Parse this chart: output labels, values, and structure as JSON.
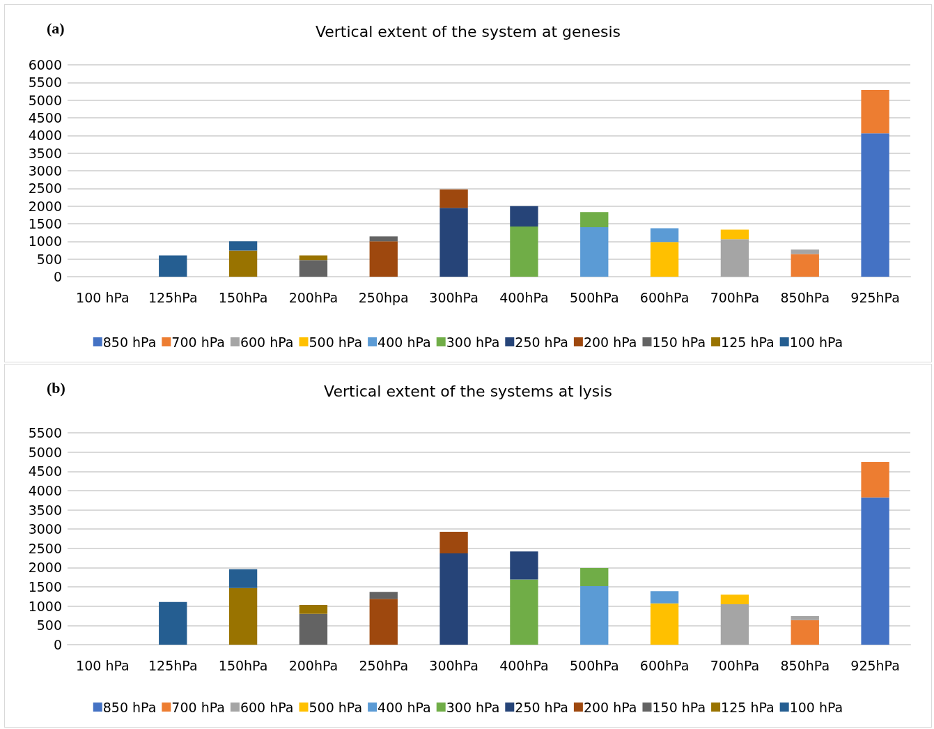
{
  "chart_data": [
    {
      "type": "bar",
      "title": "Vertical extent of the system at genesis",
      "annotations": [
        "(a)"
      ],
      "stacked": true,
      "grid": "y",
      "legend": "bottom",
      "ylim": [
        0,
        6000
      ],
      "yticks": [
        0,
        500,
        1000,
        1500,
        2000,
        2500,
        3000,
        3500,
        4000,
        4500,
        5000,
        5500,
        6000
      ],
      "categories": [
        "100 hPa",
        "125hPa",
        "150hPa",
        "200hPa",
        "250hpa",
        "300hPa",
        "400hPa",
        "500hPa",
        "600hPa",
        "700hPa",
        "850hPa",
        "925hPa"
      ],
      "series": [
        {
          "name": "850 hPa",
          "color": "#4472c4",
          "values": [
            null,
            null,
            null,
            null,
            null,
            null,
            null,
            null,
            null,
            null,
            null,
            4060
          ]
        },
        {
          "name": "700 hPa",
          "color": "#ed7d31",
          "values": [
            null,
            null,
            null,
            null,
            null,
            null,
            null,
            null,
            null,
            null,
            640,
            1230
          ]
        },
        {
          "name": "600 hPa",
          "color": "#a5a5a5",
          "values": [
            null,
            null,
            null,
            null,
            null,
            null,
            null,
            null,
            null,
            1060,
            130,
            null
          ]
        },
        {
          "name": "500 hPa",
          "color": "#ffc000",
          "values": [
            null,
            null,
            null,
            null,
            null,
            null,
            null,
            null,
            980,
            270,
            null,
            null
          ]
        },
        {
          "name": "400 hPa",
          "color": "#5b9bd5",
          "values": [
            null,
            null,
            null,
            null,
            null,
            null,
            null,
            1400,
            390,
            null,
            null,
            null
          ]
        },
        {
          "name": "300 hPa",
          "color": "#70ad47",
          "values": [
            null,
            null,
            null,
            null,
            null,
            null,
            1420,
            430,
            null,
            null,
            null,
            null
          ]
        },
        {
          "name": "250 hPa",
          "color": "#264478",
          "values": [
            null,
            null,
            null,
            null,
            null,
            1950,
            580,
            null,
            null,
            null,
            null,
            null
          ]
        },
        {
          "name": "200 hPa",
          "color": "#9e480e",
          "values": [
            null,
            null,
            null,
            null,
            1000,
            520,
            null,
            null,
            null,
            null,
            null,
            null
          ]
        },
        {
          "name": "150 hPa",
          "color": "#636363",
          "values": [
            null,
            null,
            null,
            470,
            140,
            null,
            null,
            null,
            null,
            null,
            null,
            null
          ]
        },
        {
          "name": "125 hPa",
          "color": "#997300",
          "values": [
            null,
            null,
            740,
            130,
            null,
            null,
            null,
            null,
            null,
            null,
            null,
            null
          ]
        },
        {
          "name": "100 hPa",
          "color": "#255e91",
          "values": [
            null,
            600,
            260,
            null,
            null,
            null,
            null,
            null,
            null,
            null,
            null,
            null
          ]
        }
      ]
    },
    {
      "type": "bar",
      "title": "Vertical extent of the systems at lysis",
      "annotations": [
        "(b)"
      ],
      "stacked": true,
      "grid": "y",
      "legend": "bottom",
      "ylim": [
        0,
        5500
      ],
      "yticks": [
        0,
        500,
        1000,
        1500,
        2000,
        2500,
        3000,
        3500,
        4000,
        4500,
        5000,
        5500
      ],
      "categories": [
        "100 hPa",
        "125hPa",
        "150hPa",
        "200hPa",
        "250hPa",
        "300hPa",
        "400hPa",
        "500hPa",
        "600hPa",
        "700hPa",
        "850hPa",
        "925hPa"
      ],
      "series": [
        {
          "name": "850 hPa",
          "color": "#4472c4",
          "values": [
            null,
            null,
            null,
            null,
            null,
            null,
            null,
            null,
            null,
            null,
            null,
            3820
          ]
        },
        {
          "name": "700 hPa",
          "color": "#ed7d31",
          "values": [
            null,
            null,
            null,
            null,
            null,
            null,
            null,
            null,
            null,
            null,
            640,
            920
          ]
        },
        {
          "name": "600 hPa",
          "color": "#a5a5a5",
          "values": [
            null,
            null,
            null,
            null,
            null,
            null,
            null,
            null,
            null,
            1050,
            100,
            null
          ]
        },
        {
          "name": "500 hPa",
          "color": "#ffc000",
          "values": [
            null,
            null,
            null,
            null,
            null,
            null,
            null,
            null,
            1070,
            250,
            null,
            null
          ]
        },
        {
          "name": "400 hPa",
          "color": "#5b9bd5",
          "values": [
            null,
            null,
            null,
            null,
            null,
            null,
            null,
            1520,
            320,
            null,
            null,
            null
          ]
        },
        {
          "name": "300 hPa",
          "color": "#70ad47",
          "values": [
            null,
            null,
            null,
            null,
            null,
            null,
            1690,
            470,
            null,
            null,
            null,
            null
          ]
        },
        {
          "name": "250 hPa",
          "color": "#264478",
          "values": [
            null,
            null,
            null,
            null,
            null,
            2370,
            730,
            null,
            null,
            null,
            null,
            null
          ]
        },
        {
          "name": "200 hPa",
          "color": "#9e480e",
          "values": [
            null,
            null,
            null,
            null,
            1190,
            560,
            null,
            null,
            null,
            null,
            null,
            null
          ]
        },
        {
          "name": "150 hPa",
          "color": "#636363",
          "values": [
            null,
            null,
            null,
            800,
            180,
            null,
            null,
            null,
            null,
            null,
            null,
            null
          ]
        },
        {
          "name": "125 hPa",
          "color": "#997300",
          "values": [
            null,
            null,
            1470,
            230,
            null,
            null,
            null,
            null,
            null,
            null,
            null,
            null
          ]
        },
        {
          "name": "100 hPa",
          "color": "#255e91",
          "values": [
            null,
            1110,
            490,
            null,
            null,
            null,
            null,
            null,
            null,
            null,
            null,
            null
          ]
        }
      ]
    }
  ]
}
